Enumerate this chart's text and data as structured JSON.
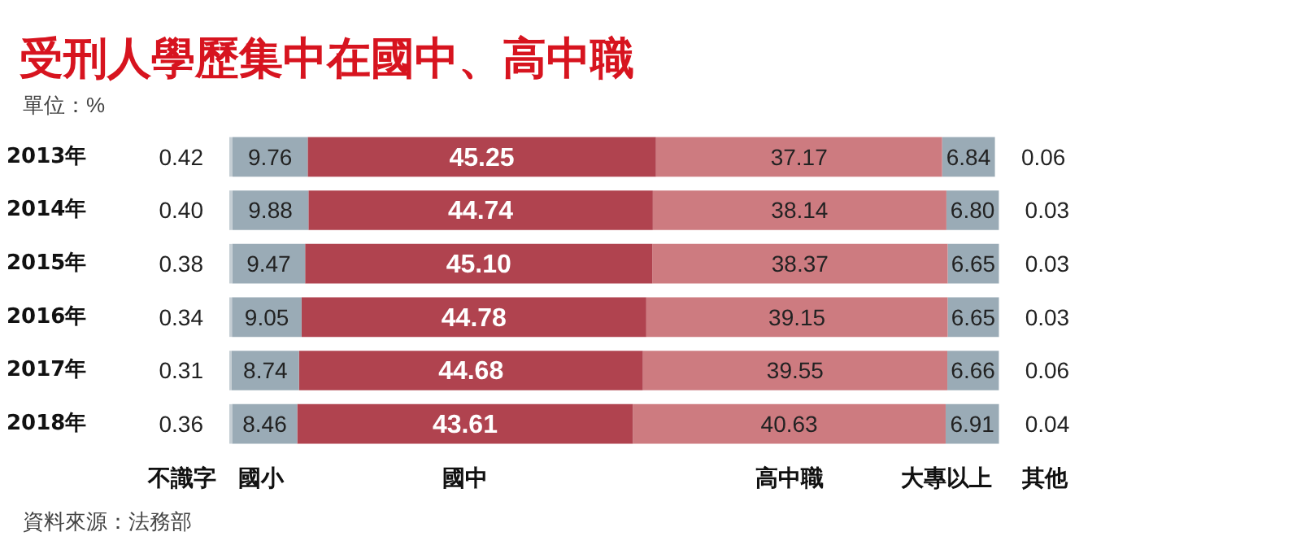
{
  "chart_data": {
    "type": "bar",
    "orientation": "horizontal",
    "stacked": true,
    "title": "受刑人學歷集中在國中、高中職",
    "subtitle": "單位：%",
    "annotations": [
      "資料來源：法務部"
    ],
    "categories": [
      "2013年",
      "2014年",
      "2015年",
      "2016年",
      "2017年",
      "2018年"
    ],
    "tick_labels": "y",
    "legend": "bottom",
    "series": [
      {
        "name": "不識字",
        "color": "#c5ced4",
        "values": [
          0.42,
          0.4,
          0.38,
          0.34,
          0.31,
          0.36
        ],
        "value_labels": [
          "0.42",
          "0.40",
          "0.38",
          "0.34",
          "0.31",
          "0.36"
        ]
      },
      {
        "name": "國小",
        "color": "#9aabb6",
        "values": [
          9.76,
          9.88,
          9.47,
          9.05,
          8.74,
          8.46
        ],
        "value_labels": [
          "9.76",
          "9.88",
          "9.47",
          "9.05",
          "8.74",
          "8.46"
        ]
      },
      {
        "name": "國中",
        "color": "#b0434f",
        "values": [
          45.25,
          44.74,
          45.1,
          44.78,
          44.68,
          43.61
        ],
        "value_labels": [
          "45.25",
          "44.74",
          "45.10",
          "44.78",
          "44.68",
          "43.61"
        ]
      },
      {
        "name": "高中職",
        "color": "#cd7b80",
        "values": [
          37.17,
          38.14,
          38.37,
          39.15,
          39.55,
          40.63
        ],
        "value_labels": [
          "37.17",
          "38.14",
          "38.37",
          "39.15",
          "39.55",
          "40.63"
        ]
      },
      {
        "name": "大專以上",
        "color": "#9aabb6",
        "values": [
          6.84,
          6.8,
          6.65,
          6.65,
          6.66,
          6.91
        ],
        "value_labels": [
          "6.84",
          "6.80",
          "6.65",
          "6.65",
          "6.66",
          "6.91"
        ]
      },
      {
        "name": "其他",
        "color": "#c5ced4",
        "values": [
          0.06,
          0.03,
          0.03,
          0.03,
          0.06,
          0.04
        ],
        "value_labels": [
          "0.06",
          "0.03",
          "0.03",
          "0.03",
          "0.06",
          "0.04"
        ]
      }
    ]
  }
}
